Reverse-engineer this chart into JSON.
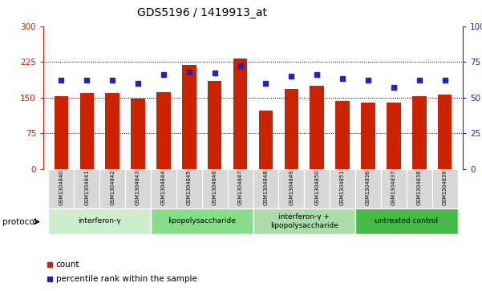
{
  "title": "GDS5196 / 1419913_at",
  "samples": [
    "GSM1304840",
    "GSM1304841",
    "GSM1304842",
    "GSM1304843",
    "GSM1304844",
    "GSM1304845",
    "GSM1304846",
    "GSM1304847",
    "GSM1304848",
    "GSM1304849",
    "GSM1304850",
    "GSM1304851",
    "GSM1304836",
    "GSM1304837",
    "GSM1304838",
    "GSM1304839"
  ],
  "counts": [
    152,
    160,
    160,
    148,
    161,
    218,
    185,
    232,
    122,
    168,
    175,
    143,
    140,
    140,
    153,
    156
  ],
  "percentile_ranks": [
    62,
    62,
    62,
    60,
    66,
    68,
    67,
    72,
    60,
    65,
    66,
    63,
    62,
    57,
    62,
    62
  ],
  "groups": [
    {
      "label": "interferon-γ",
      "start": 0,
      "end": 4,
      "color": "#cceecc"
    },
    {
      "label": "lipopolysaccharide",
      "start": 4,
      "end": 8,
      "color": "#88dd88"
    },
    {
      "label": "interferon-γ +\nlipopolysaccharide",
      "start": 8,
      "end": 12,
      "color": "#aaddaa"
    },
    {
      "label": "untreated control",
      "start": 12,
      "end": 16,
      "color": "#44bb44"
    }
  ],
  "bar_color": "#cc2200",
  "dot_color": "#2222cc",
  "left_ylim": [
    0,
    300
  ],
  "right_ylim": [
    0,
    100
  ],
  "left_yticks": [
    0,
    75,
    150,
    225,
    300
  ],
  "right_yticks": [
    0,
    25,
    50,
    75,
    100
  ],
  "right_yticklabels": [
    "0",
    "25",
    "50",
    "75",
    "100%"
  ],
  "grid_values": [
    75,
    150,
    225
  ],
  "bg_color": "#ffffff",
  "legend_items": [
    {
      "label": "count",
      "color": "#cc2200"
    },
    {
      "label": "percentile rank within the sample",
      "color": "#2222cc"
    }
  ]
}
